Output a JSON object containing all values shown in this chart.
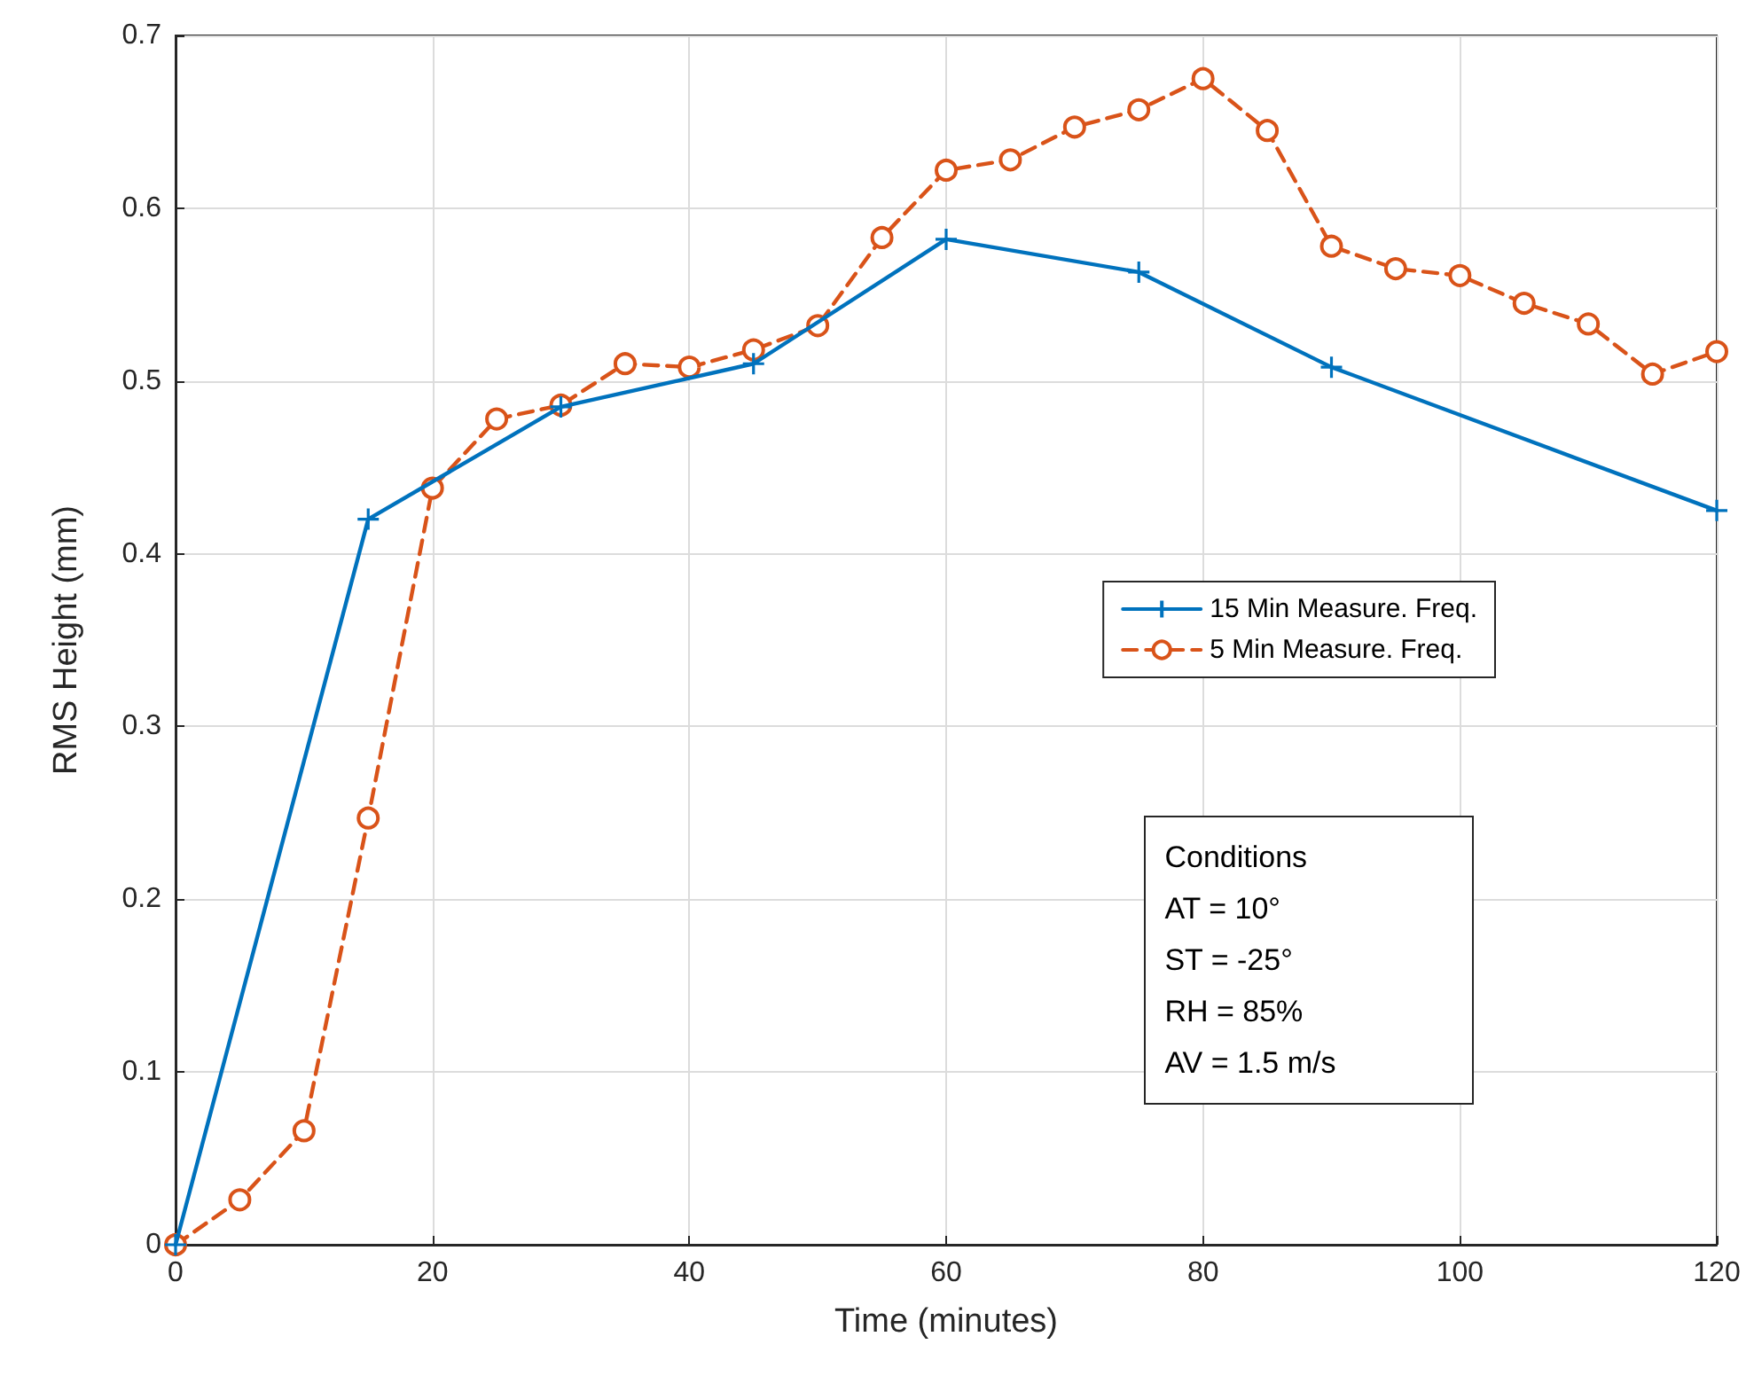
{
  "chart_data": {
    "type": "line",
    "xlabel": "Time (minutes)",
    "ylabel": "RMS Height (mm)",
    "xlim": [
      0,
      120
    ],
    "xticks": [
      0,
      20,
      40,
      60,
      80,
      100,
      120
    ],
    "ylim": [
      0,
      0.7
    ],
    "yticks": [
      0,
      0.1,
      0.2,
      0.3,
      0.4,
      0.5,
      0.6,
      0.7
    ],
    "grid": true,
    "legend": "right",
    "annotations": [
      "Conditions",
      "AT = 10°",
      "ST = -25°",
      "RH = 85%",
      "AV = 1.5 m/s"
    ],
    "series": [
      {
        "name": "15 Min Measure. Freq.",
        "color": "#0072bd",
        "marker": "cross",
        "line_style": "solid",
        "x": [
          0,
          15,
          30,
          45,
          60,
          75,
          90,
          120
        ],
        "values": [
          0,
          0.42,
          0.485,
          0.51,
          0.582,
          0.563,
          0.508,
          0.425
        ]
      },
      {
        "name": "5 Min Measure. Freq.",
        "color": "#d95319",
        "marker": "circle",
        "line_style": "dashed",
        "x": [
          0,
          5,
          10,
          15,
          20,
          25,
          30,
          35,
          40,
          45,
          50,
          55,
          60,
          65,
          70,
          75,
          80,
          85,
          90,
          95,
          100,
          105,
          110,
          115,
          120
        ],
        "values": [
          0,
          0.026,
          0.066,
          0.247,
          0.438,
          0.478,
          0.486,
          0.51,
          0.508,
          0.518,
          0.532,
          0.583,
          0.622,
          0.628,
          0.647,
          0.657,
          0.675,
          0.645,
          0.578,
          0.565,
          0.561,
          0.545,
          0.533,
          0.504,
          0.517
        ]
      }
    ]
  }
}
